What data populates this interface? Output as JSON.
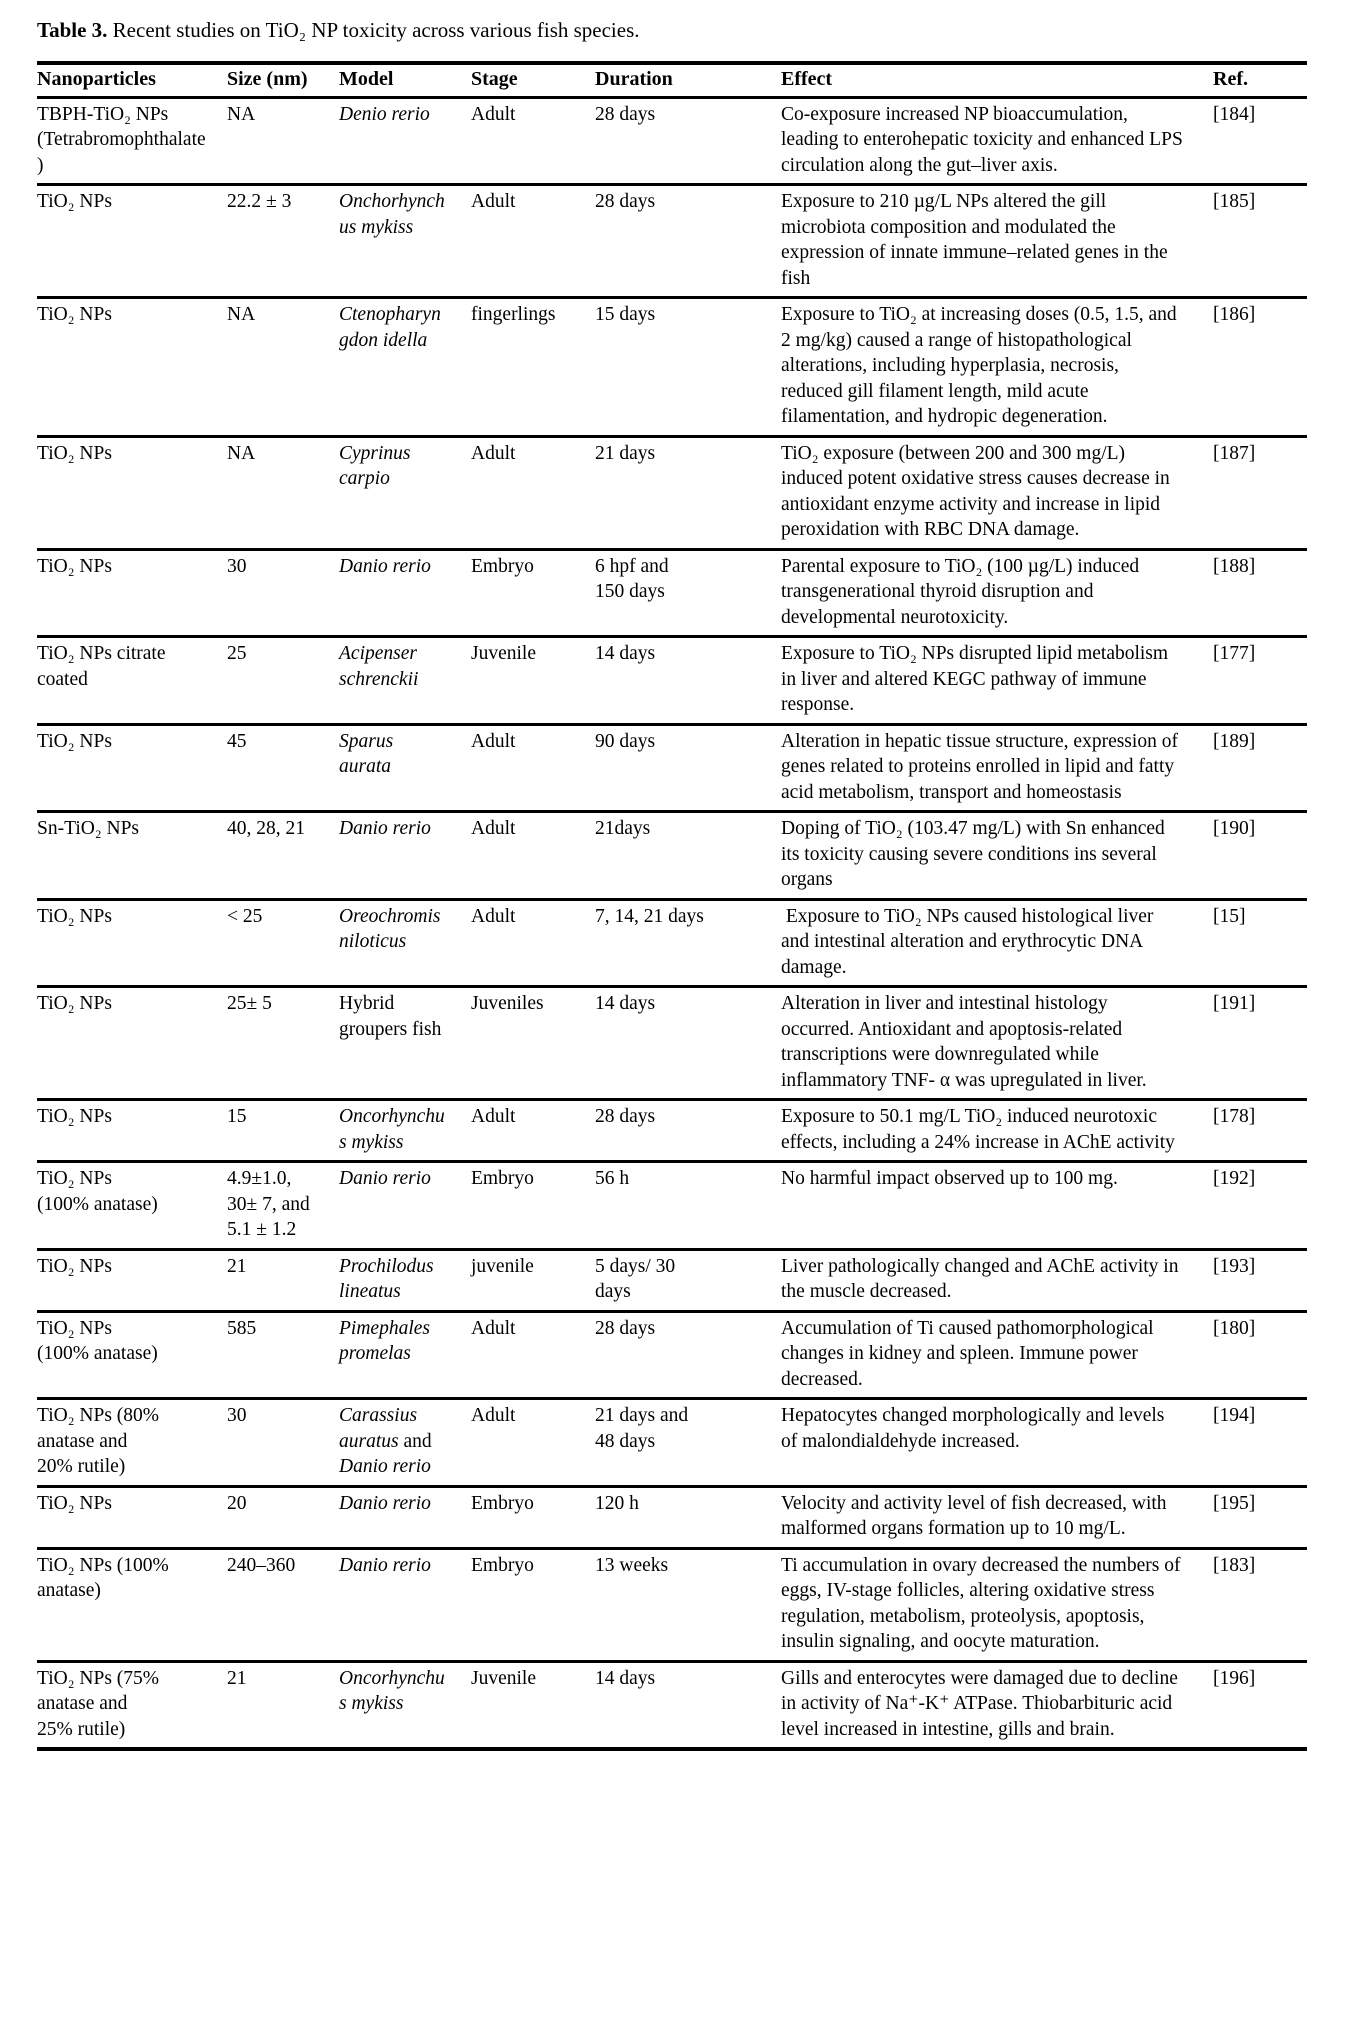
{
  "title": {
    "label": "Table 3.",
    "text": " Recent studies on TiO₂ NP toxicity across various fish species."
  },
  "table": {
    "headers": [
      "Nanoparticles",
      "Size (nm)",
      "Model",
      "Stage",
      "Duration",
      "Effect",
      "Ref."
    ],
    "rows": [
      {
        "nanoparticles": "TBPH-TiO₂ NPs (Tetrabromophthalate)",
        "size": "NA",
        "model": [
          {
            "t": "Denio rerio",
            "i": true
          }
        ],
        "stage": "Adult",
        "duration": "28 days",
        "effect": "Co-exposure increased NP bioaccumulation, leading to enterohepatic toxicity and enhanced LPS circulation along the gut–liver axis.",
        "ref": "[184]"
      },
      {
        "nanoparticles": "TiO₂ NPs",
        "size": "22.2 ± 3",
        "model": [
          {
            "t": "Onchorhynchus mykiss",
            "i": true
          }
        ],
        "stage": "Adult",
        "duration": "28 days",
        "effect": "Exposure to 210 µg/L NPs altered the gill microbiota composition and modulated the expression of innate immune–related genes in the fish",
        "ref": "[185]"
      },
      {
        "nanoparticles": "TiO₂ NPs",
        "size": "NA",
        "model": [
          {
            "t": "Ctenopharyngdon idella",
            "i": true
          }
        ],
        "stage": "fingerlings",
        "duration": "15 days",
        "effect": "Exposure to TiO₂ at increasing doses (0.5, 1.5, and 2 mg/kg) caused a range of histopathological alterations, including hyperplasia, necrosis, reduced gill filament length, mild acute filamentation, and hydropic degeneration.",
        "ref": "[186]"
      },
      {
        "nanoparticles": "TiO₂ NPs",
        "size": "NA",
        "model": [
          {
            "t": "Cyprinus carpio",
            "i": true
          }
        ],
        "stage": "Adult",
        "duration": "21 days",
        "effect": "TiO₂ exposure (between 200 and 300 mg/L) induced potent oxidative stress causes decrease in antioxidant enzyme activity and increase in lipid peroxidation with RBC DNA damage.",
        "ref": "[187]"
      },
      {
        "nanoparticles": "TiO₂ NPs",
        "size": "30",
        "model": [
          {
            "t": "Danio rerio",
            "i": true
          }
        ],
        "stage": "Embryo",
        "duration": "6 hpf and\n150 days",
        "effect": "Parental exposure to TiO₂ (100 µg/L) induced transgenerational thyroid disruption and developmental neurotoxicity.",
        "ref": "[188]"
      },
      {
        "nanoparticles": "TiO₂ NPs citrate\ncoated",
        "size": "25",
        "model": [
          {
            "t": "Acipenser schrenckii",
            "i": true
          }
        ],
        "stage": "Juvenile",
        "duration": "14 days",
        "effect": "Exposure to TiO₂ NPs disrupted lipid metabolism in liver and altered KEGC pathway of immune response.",
        "ref": "[177]"
      },
      {
        "nanoparticles": "TiO₂ NPs",
        "size": "45",
        "model": [
          {
            "t": "Sparus aurata",
            "i": true
          }
        ],
        "stage": "Adult",
        "duration": "90 days",
        "effect": "Alteration in hepatic tissue structure, expression of genes related to proteins enrolled in lipid and fatty acid metabolism, transport and homeostasis",
        "ref": "[189]"
      },
      {
        "nanoparticles": "Sn-TiO₂ NPs",
        "size": "40, 28, 21",
        "model": [
          {
            "t": "Danio rerio",
            "i": true
          }
        ],
        "stage": "Adult",
        "duration": "21days",
        "effect": "Doping of TiO₂ (103.47 mg/L) with Sn enhanced its toxicity causing severe conditions ins several organs",
        "ref": "[190]"
      },
      {
        "nanoparticles": "TiO₂ NPs",
        "size": "< 25",
        "model": [
          {
            "t": "Oreochromis niloticus",
            "i": true
          }
        ],
        "stage": "Adult",
        "duration": "7, 14, 21 days",
        "effect": " Exposure to TiO₂ NPs caused histological liver and intestinal alteration and erythrocytic DNA damage.",
        "ref": "[15]"
      },
      {
        "nanoparticles": "TiO₂ NPs",
        "size": "25± 5",
        "model": [
          {
            "t": "Hybrid groupers fish",
            "i": false
          }
        ],
        "stage": "Juveniles",
        "duration": "14 days",
        "effect": "Alteration in liver and intestinal histology occurred. Antioxidant and apoptosis-related transcriptions were downregulated while inflammatory TNF- α was upregulated in liver.",
        "ref": "[191]"
      },
      {
        "nanoparticles": "TiO₂ NPs",
        "size": "15",
        "model": [
          {
            "t": "Oncorhynchus mykiss",
            "i": true
          }
        ],
        "stage": "Adult",
        "duration": "28 days",
        "effect": "Exposure to 50.1 mg/L TiO₂ induced neurotoxic effects, including a 24% increase in AChE activity",
        "ref": "[178]"
      },
      {
        "nanoparticles": "TiO₂ NPs\n(100% anatase)",
        "size": "4.9±1.0,\n30± 7, and\n5.1 ± 1.2",
        "model": [
          {
            "t": "Danio rerio",
            "i": true
          }
        ],
        "stage": "Embryo",
        "duration": "56 h",
        "effect": "No harmful impact observed up to 100 mg.",
        "ref": "[192]"
      },
      {
        "nanoparticles": "TiO₂ NPs",
        "size": "21",
        "model": [
          {
            "t": "Prochilodus lineatus",
            "i": true
          }
        ],
        "stage": "juvenile",
        "duration": "5 days/ 30\ndays",
        "effect": "Liver pathologically changed and AChE activity in the muscle decreased.",
        "ref": "[193]"
      },
      {
        "nanoparticles": "TiO₂ NPs\n(100% anatase)",
        "size": "585",
        "model": [
          {
            "t": "Pimephales promelas",
            "i": true
          }
        ],
        "stage": "Adult",
        "duration": "28 days",
        "effect": "Accumulation of Ti caused pathomorphological changes in kidney and spleen. Immune power decreased.",
        "ref": "[180]"
      },
      {
        "nanoparticles": "TiO₂ NPs (80%\nanatase and\n20% rutile)",
        "size": "30",
        "model": [
          {
            "t": "Carassius auratus",
            "i": true
          },
          {
            "t": " and ",
            "i": false
          },
          {
            "t": "Danio rerio",
            "i": true
          }
        ],
        "stage": "Adult",
        "duration": "21 days and\n48 days",
        "effect": "Hepatocytes changed morphologically and levels of malondialdehyde increased.",
        "ref": "[194]"
      },
      {
        "nanoparticles": "TiO₂ NPs",
        "size": "20",
        "model": [
          {
            "t": "Danio rerio",
            "i": true
          }
        ],
        "stage": "Embryo",
        "duration": "120 h",
        "effect": "Velocity and activity level of fish decreased, with malformed organs formation up to 10 mg/L.",
        "ref": "[195]"
      },
      {
        "nanoparticles": "TiO₂ NPs (100%\nanatase)",
        "size": "240–360",
        "model": [
          {
            "t": "Danio rerio",
            "i": true
          }
        ],
        "stage": "Embryo",
        "duration": "13 weeks",
        "effect": "Ti accumulation in ovary decreased the numbers of eggs, IV-stage follicles, altering oxidative stress regulation, metabolism, proteolysis, apoptosis, insulin signaling, and oocyte maturation.",
        "ref": "[183]"
      },
      {
        "nanoparticles": "TiO₂ NPs (75%\nanatase and\n25% rutile)",
        "size": "21",
        "model": [
          {
            "t": "Oncorhynchus mykiss",
            "i": true
          }
        ],
        "stage": "Juvenile",
        "duration": "14 days",
        "effect": "Gills and enterocytes were damaged due to decline in activity of Na⁺-K⁺ ATPase. Thiobarbituric acid level increased in intestine, gills and brain.",
        "ref": "[196]"
      }
    ]
  }
}
